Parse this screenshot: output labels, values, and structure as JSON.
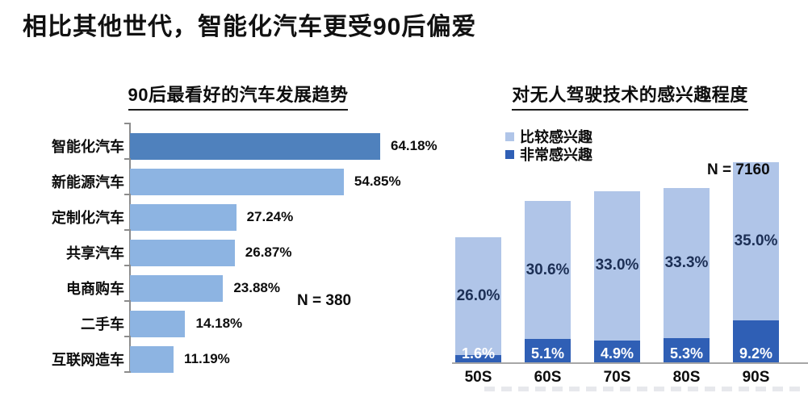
{
  "page_title": "相比其他世代，智能化汽车更受90后偏爱",
  "colors": {
    "left_highlight_bar": "#4f81bd",
    "left_bar": "#8db4e2",
    "right_light_segment": "#b0c5e8",
    "right_dark_segment": "#2f5fb5",
    "light_label_text": "#1c2f55",
    "dark_label_text": "#ffffff"
  },
  "chart_data": [
    {
      "type": "bar",
      "orientation": "horizontal",
      "title": "90后最看好的汽车发展趋势",
      "categories": [
        "智能化汽车",
        "新能源汽车",
        "定制化汽车",
        "共享汽车",
        "电商购车",
        "二手车",
        "互联网造车"
      ],
      "values": [
        64.18,
        54.85,
        27.24,
        26.87,
        23.88,
        14.18,
        11.19
      ],
      "value_labels": [
        "64.18%",
        "54.85%",
        "27.24%",
        "26.87%",
        "23.88%",
        "14.18%",
        "11.19%"
      ],
      "sample_note": "N = 380",
      "xlim": [
        0,
        70
      ],
      "grid": false,
      "highlight_index": 0
    },
    {
      "type": "bar",
      "stacked": true,
      "title": "对无人驾驶技术的感兴趣程度",
      "categories": [
        "50S",
        "60S",
        "70S",
        "80S",
        "90S"
      ],
      "series": [
        {
          "name": "比较感兴趣",
          "values": [
            26.0,
            30.6,
            33.0,
            33.3,
            35.0
          ],
          "labels": [
            "26.0%",
            "30.6%",
            "33.0%",
            "33.3%",
            "35.0%"
          ],
          "color": "#b0c5e8"
        },
        {
          "name": "非常感兴趣",
          "values": [
            1.6,
            5.1,
            4.9,
            5.3,
            9.2
          ],
          "labels": [
            "1.6%",
            "5.1%",
            "4.9%",
            "5.3%",
            "9.2%"
          ],
          "color": "#2f5fb5"
        }
      ],
      "legend_position": "top-left",
      "sample_note": "N = 7160",
      "ylim": [
        0,
        45
      ],
      "grid": false
    }
  ]
}
